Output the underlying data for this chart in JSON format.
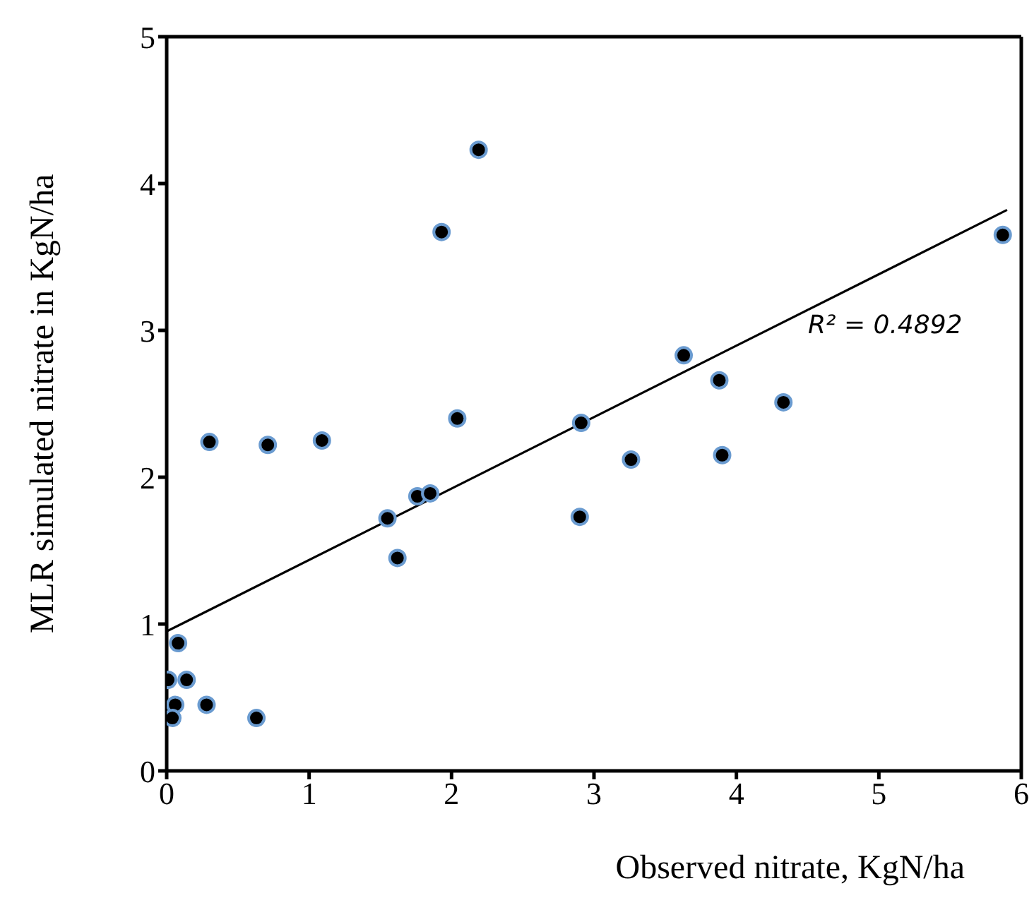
{
  "chart_data": {
    "type": "scatter",
    "xlabel": "Observed nitrate, KgN/ha",
    "ylabel": "MLR simulated nitrate in KgN/ha",
    "xlim": [
      0,
      6
    ],
    "xticks": [
      0,
      1,
      2,
      3,
      4,
      5,
      6
    ],
    "ylim": [
      0,
      5
    ],
    "yticks": [
      0,
      1,
      2,
      3,
      4,
      5
    ],
    "marker": "circle",
    "annotations": [
      "R² = 0.4892"
    ],
    "series": [
      {
        "color": "#000000",
        "x": [
          0.01,
          0.06,
          0.04,
          0.08,
          0.14,
          0.28,
          0.63,
          0.3,
          0.71,
          1.09,
          1.55,
          1.62,
          1.76,
          1.85,
          1.93,
          2.19,
          2.04,
          2.91,
          2.9,
          3.26,
          3.63,
          3.88,
          3.9,
          4.33,
          5.87
        ],
        "values": [
          0.62,
          0.45,
          0.36,
          0.87,
          0.62,
          0.45,
          0.36,
          2.24,
          2.22,
          2.25,
          1.72,
          1.45,
          1.87,
          1.89,
          3.67,
          4.23,
          2.4,
          2.37,
          1.73,
          2.12,
          2.83,
          2.66,
          2.15,
          2.51,
          3.65
        ]
      },
      {
        "type": "line",
        "color": "#000000",
        "x": [
          0,
          5.9
        ],
        "values": [
          0.95,
          3.82
        ],
        "marker": "none",
        "line_style": "solid"
      }
    ]
  }
}
